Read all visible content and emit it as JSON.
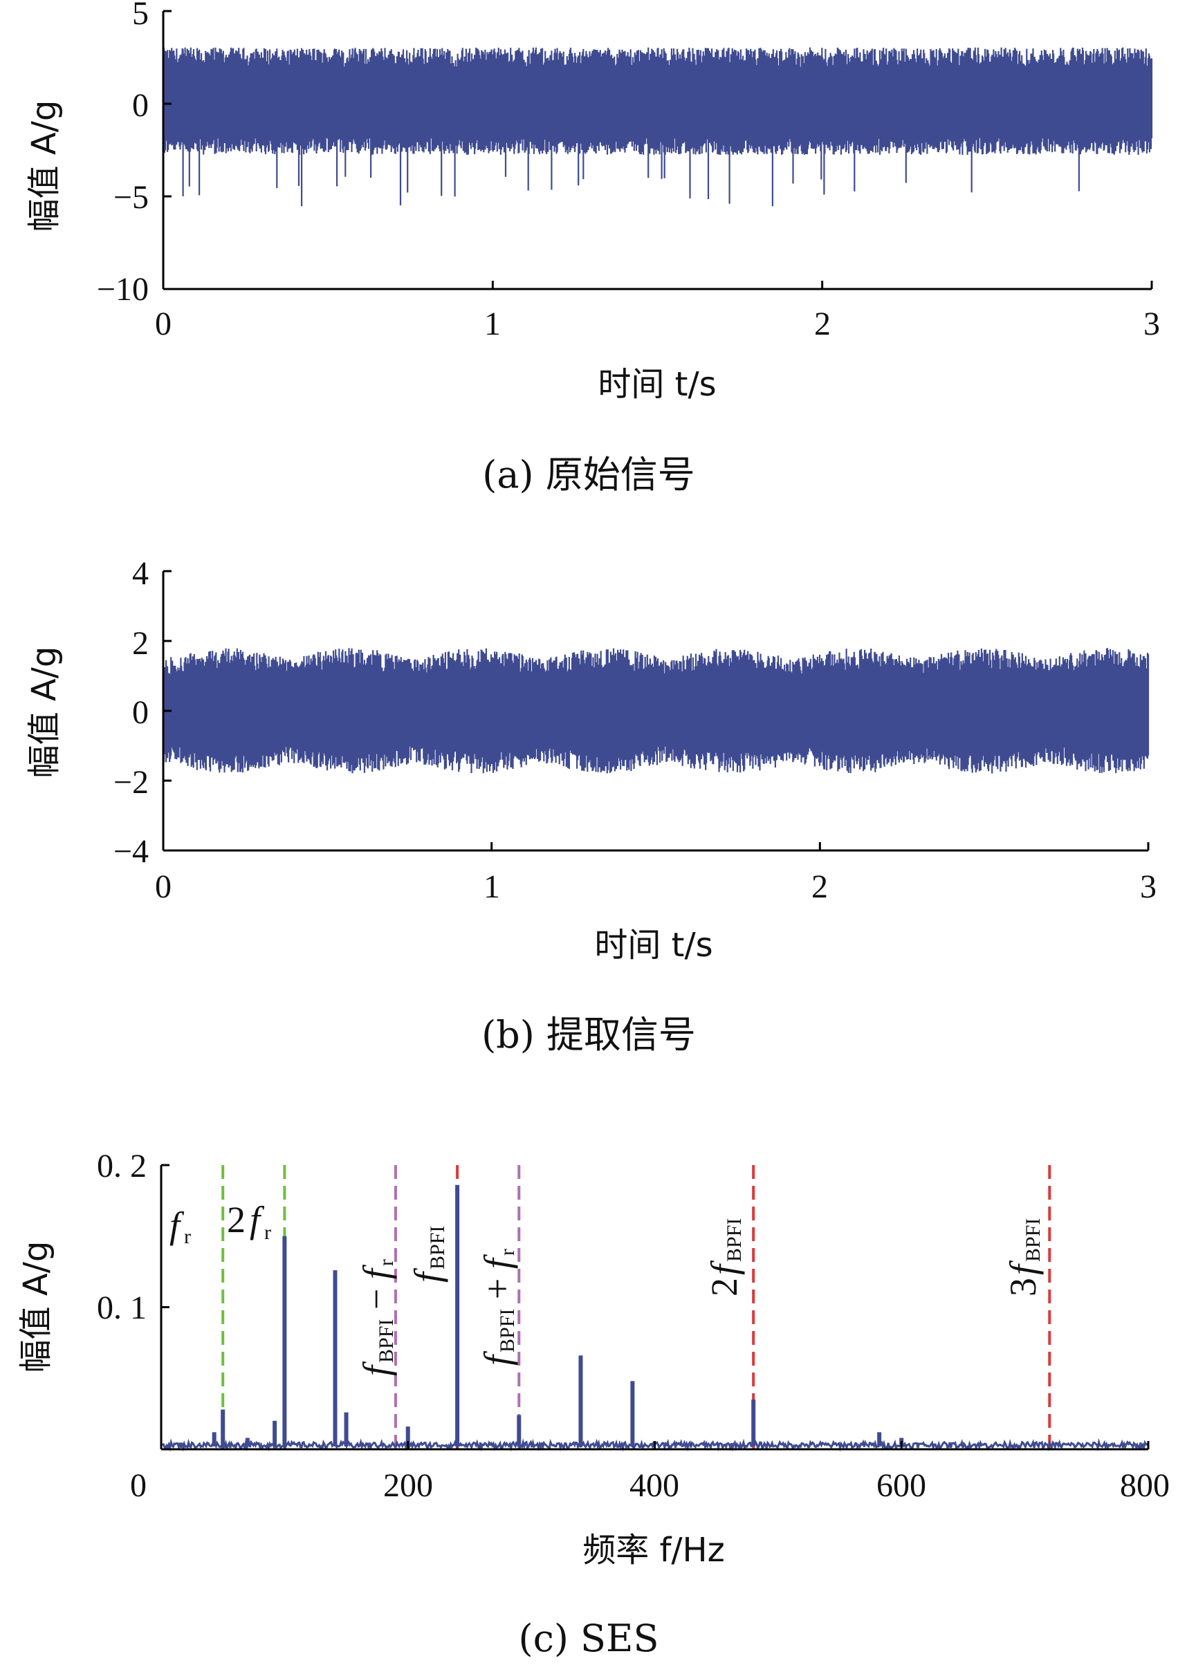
{
  "chart_data": [
    {
      "type": "line",
      "caption": "(a) 原始信号",
      "xlabel": "时间 t/s",
      "ylabel": "幅值 A/g",
      "xlim": [
        0,
        3
      ],
      "ylim": [
        -10,
        5
      ],
      "xticks": [
        "0",
        "1",
        "2",
        "3"
      ],
      "yticks": [
        "5",
        "0",
        "−5",
        "−10"
      ],
      "series": [
        {
          "color": "#3f4b91",
          "envelope_positive": 3.3,
          "envelope_negative": -3.0,
          "peak_min": -5.6
        }
      ]
    },
    {
      "type": "line",
      "caption": "(b) 提取信号",
      "xlabel": "时间 t/s",
      "ylabel": "幅值 A/g",
      "xlim": [
        0,
        3
      ],
      "ylim": [
        -4,
        4
      ],
      "xticks": [
        "0",
        "1",
        "2",
        "3"
      ],
      "yticks": [
        "4",
        "2",
        "0",
        "−2",
        "−4"
      ],
      "series": [
        {
          "color": "#3f4b91",
          "envelope_positive": 1.8,
          "envelope_negative": -1.8,
          "peak_max": 2.1,
          "peak_min": -2.1
        }
      ]
    },
    {
      "type": "line",
      "caption": "(c) SES",
      "xlabel": "频率 f/Hz",
      "ylabel": "幅值 A/g",
      "xlim": [
        0,
        800
      ],
      "ylim": [
        0,
        0.2
      ],
      "xticks": [
        "0",
        "200",
        "400",
        "600",
        "800"
      ],
      "yticks": [
        "0. 2",
        "0. 1"
      ],
      "series": [
        {
          "color": "#3f4b91",
          "peaks": [
            {
              "x": 43,
              "y": 0.012
            },
            {
              "x": 50,
              "y": 0.028
            },
            {
              "x": 70,
              "y": 0.008
            },
            {
              "x": 92,
              "y": 0.02
            },
            {
              "x": 100,
              "y": 0.15
            },
            {
              "x": 141,
              "y": 0.126
            },
            {
              "x": 150,
              "y": 0.026
            },
            {
              "x": 200,
              "y": 0.016
            },
            {
              "x": 240,
              "y": 0.186
            },
            {
              "x": 290,
              "y": 0.024
            },
            {
              "x": 340,
              "y": 0.066
            },
            {
              "x": 382,
              "y": 0.048
            },
            {
              "x": 480,
              "y": 0.035
            },
            {
              "x": 582,
              "y": 0.012
            },
            {
              "x": 600,
              "y": 0.008
            }
          ]
        }
      ],
      "markers": [
        {
          "x": 50,
          "color": "#6ec03c",
          "label": "f_r"
        },
        {
          "x": 100,
          "color": "#6ec03c",
          "label": "2f_r"
        },
        {
          "x": 190,
          "color": "#b06fb0",
          "label": "f_BPFI − f_r"
        },
        {
          "x": 240,
          "color": "#d93a3a",
          "label": "f_BPFI"
        },
        {
          "x": 290,
          "color": "#b06fb0",
          "label": "f_BPFI + f_r"
        },
        {
          "x": 480,
          "color": "#d93a3a",
          "label": "2f_BPFI"
        },
        {
          "x": 720,
          "color": "#d93a3a",
          "label": "3f_BPFI"
        }
      ],
      "annotations": {
        "fr_base": "f",
        "fr_sub": "r",
        "two_fr_coef": "2",
        "two_fr_base": "f",
        "two_fr_sub": "r",
        "bpfi_minus_base": "f",
        "bpfi_minus_sub": "BPFI",
        "bpfi_minus_op": " − ",
        "bpfi_minus_base2": "f",
        "bpfi_minus_sub2": "r",
        "bpfi_base": "f",
        "bpfi_sub": "BPFI",
        "bpfi_plus_base": "f",
        "bpfi_plus_sub": "BPFI",
        "bpfi_plus_op": " + ",
        "bpfi_plus_base2": "f",
        "bpfi_plus_sub2": "r",
        "two_bpfi_coef": "2",
        "two_bpfi_base": "f",
        "two_bpfi_sub": "BPFI",
        "three_bpfi_coef": "3",
        "three_bpfi_base": "f",
        "three_bpfi_sub": "BPFI"
      }
    }
  ]
}
